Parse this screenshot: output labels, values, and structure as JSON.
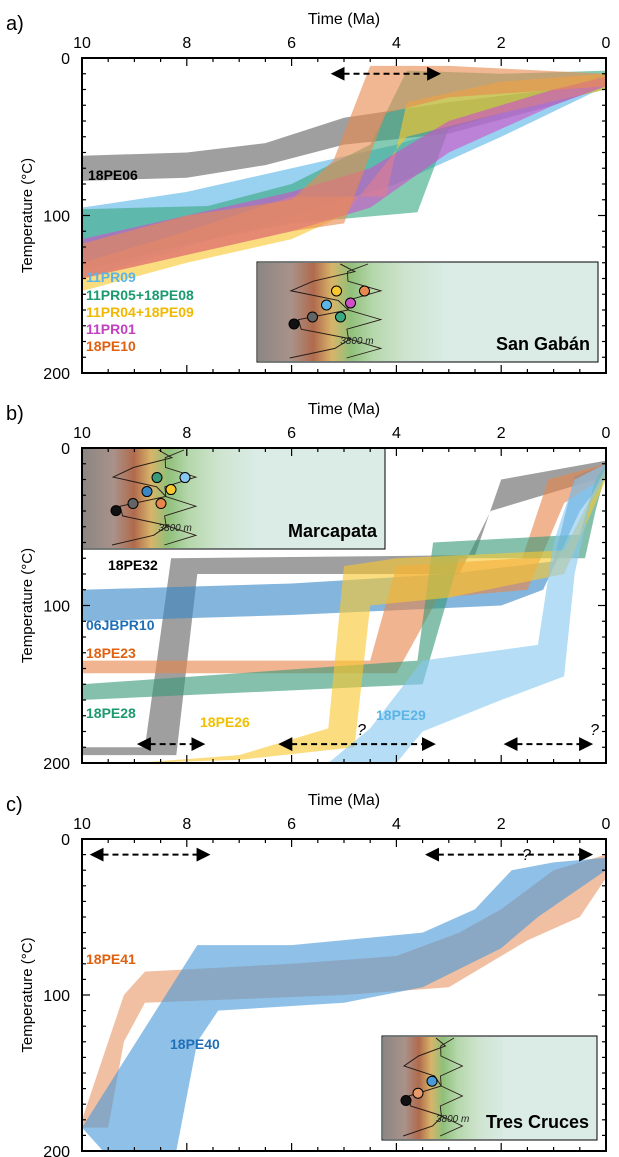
{
  "figure": {
    "panels": [
      {
        "letter": "a)",
        "xlabel": "Time (Ma)",
        "ylabel": "Temperature (°C)",
        "xticks": [
          "10",
          "8",
          "6",
          "4",
          "2",
          "0"
        ],
        "yticks": [
          "0",
          "100",
          "200"
        ],
        "inset_label": "San Gabán",
        "contour_label": "3800 m",
        "question_marks": []
      },
      {
        "letter": "b)",
        "xlabel": "Time (Ma)",
        "ylabel": "Temperature (°C)",
        "xticks": [
          "10",
          "8",
          "6",
          "4",
          "2",
          "0"
        ],
        "yticks": [
          "0",
          "100",
          "200"
        ],
        "inset_label": "Marcapata",
        "contour_label": "3800 m",
        "question_marks": [
          "?",
          "?"
        ]
      },
      {
        "letter": "c)",
        "xlabel": "Time (Ma)",
        "ylabel": "Temperature (°C)",
        "xticks": [
          "10",
          "8",
          "6",
          "4",
          "2",
          "0"
        ],
        "yticks": [
          "0",
          "100",
          "200"
        ],
        "inset_label": "Tres Cruces",
        "contour_label": "3800 m",
        "question_marks": [
          "?"
        ]
      }
    ]
  },
  "chart_data": [
    {
      "type": "area",
      "panel": "a)",
      "x_axis": {
        "label": "Time (Ma)",
        "range": [
          10,
          0
        ],
        "reversed": true
      },
      "y_axis": {
        "label": "Temperature (°C)",
        "range": [
          0,
          200
        ],
        "reversed": true
      },
      "arrows": [
        {
          "from": 5.2,
          "to": 3.2,
          "temp": 10
        }
      ],
      "series": [
        {
          "name": "18PE06",
          "color": "#646464",
          "label_color": "#000000",
          "upper": [
            [
              10,
              62
            ],
            [
              8,
              60
            ],
            [
              6.5,
              54
            ],
            [
              5,
              38
            ],
            [
              3,
              28
            ],
            [
              1,
              20
            ],
            [
              0,
              12
            ]
          ],
          "lower": [
            [
              10,
              78
            ],
            [
              8,
              76
            ],
            [
              6.5,
              68
            ],
            [
              5,
              55
            ],
            [
              3,
              48
            ],
            [
              1,
              30
            ],
            [
              0,
              18
            ]
          ]
        },
        {
          "name": "11PR09",
          "color": "#5ab4e6",
          "label_color": "#5ab4e6",
          "upper": [
            [
              10,
              95
            ],
            [
              8,
              85
            ],
            [
              6,
              70
            ],
            [
              4,
              55
            ],
            [
              2,
              35
            ],
            [
              0,
              10
            ]
          ],
          "lower": [
            [
              10,
              140
            ],
            [
              8,
              120
            ],
            [
              6,
              100
            ],
            [
              4,
              80
            ],
            [
              2,
              50
            ],
            [
              0,
              18
            ]
          ]
        },
        {
          "name": "11PR05+18PE08",
          "color": "#3aaa82",
          "label_color": "#1a9a6e",
          "upper": [
            [
              10,
              96
            ],
            [
              7.6,
              94
            ],
            [
              6,
              80
            ],
            [
              4.5,
              55
            ],
            [
              3.8,
              8
            ],
            [
              2,
              10
            ],
            [
              0,
              8
            ]
          ],
          "lower": [
            [
              10,
              135
            ],
            [
              8,
              118
            ],
            [
              6,
              105
            ],
            [
              3.6,
              98
            ],
            [
              3.0,
              45
            ],
            [
              2,
              35
            ],
            [
              0,
              20
            ]
          ]
        },
        {
          "name": "11PR04+18PE09",
          "color": "#f8c830",
          "label_color": "#f0b800",
          "upper": [
            [
              10,
              130
            ],
            [
              8,
              110
            ],
            [
              6,
              88
            ],
            [
              4.2,
              88
            ],
            [
              3.8,
              28
            ],
            [
              2,
              15
            ],
            [
              0,
              10
            ]
          ],
          "lower": [
            [
              10,
              148
            ],
            [
              8,
              130
            ],
            [
              6,
              115
            ],
            [
              5,
              100
            ],
            [
              3.8,
              50
            ],
            [
              2,
              35
            ],
            [
              0,
              20
            ]
          ]
        },
        {
          "name": "11PR01",
          "color": "#d050c8",
          "label_color": "#c040c0",
          "upper": [
            [
              10,
              115
            ],
            [
              8,
              100
            ],
            [
              6,
              85
            ],
            [
              4.5,
              70
            ],
            [
              3,
              40
            ],
            [
              1,
              20
            ],
            [
              0,
              12
            ]
          ],
          "lower": [
            [
              10,
              140
            ],
            [
              8,
              125
            ],
            [
              6,
              110
            ],
            [
              4.5,
              95
            ],
            [
              3,
              60
            ],
            [
              1,
              30
            ],
            [
              0,
              18
            ]
          ]
        },
        {
          "name": "18PE10",
          "color": "#e88a50",
          "label_color": "#e06010",
          "upper": [
            [
              10,
              118
            ],
            [
              8,
              100
            ],
            [
              6,
              90
            ],
            [
              5.2,
              65
            ],
            [
              4.5,
              5
            ],
            [
              3,
              5
            ],
            [
              0,
              10
            ]
          ],
          "lower": [
            [
              10,
              140
            ],
            [
              8,
              125
            ],
            [
              6,
              110
            ],
            [
              5,
              105
            ],
            [
              4.2,
              35
            ],
            [
              3,
              25
            ],
            [
              0,
              18
            ]
          ]
        }
      ]
    },
    {
      "type": "area",
      "panel": "b)",
      "x_axis": {
        "label": "Time (Ma)",
        "range": [
          10,
          0
        ],
        "reversed": true
      },
      "y_axis": {
        "label": "Temperature (°C)",
        "range": [
          0,
          200
        ],
        "reversed": true
      },
      "arrows": [
        {
          "from": 8.9,
          "to": 7.7,
          "temp": 188
        },
        {
          "from": 6.2,
          "to": 3.3,
          "temp": 188
        },
        {
          "from": 1.9,
          "to": 0.3,
          "temp": 188
        }
      ],
      "series": [
        {
          "name": "18PE32",
          "color": "#646464",
          "label_color": "#000000",
          "upper": [
            [
              10,
              190
            ],
            [
              8.8,
              190
            ],
            [
              8.3,
              70
            ],
            [
              2.5,
              68
            ],
            [
              2,
              20
            ],
            [
              0,
              8
            ]
          ],
          "lower": [
            [
              10,
              195
            ],
            [
              8.2,
              195
            ],
            [
              7.8,
              80
            ],
            [
              2.8,
              80
            ],
            [
              2.2,
              40
            ],
            [
              0,
              18
            ]
          ]
        },
        {
          "name": "06JBPR10",
          "color": "#3888c8",
          "label_color": "#2070b8",
          "upper": [
            [
              10,
              90
            ],
            [
              6,
              86
            ],
            [
              3,
              80
            ],
            [
              1,
              72
            ],
            [
              0.6,
              18
            ],
            [
              0,
              10
            ]
          ],
          "lower": [
            [
              10,
              110
            ],
            [
              6,
              106
            ],
            [
              2,
              100
            ],
            [
              1.2,
              90
            ],
            [
              0.5,
              40
            ],
            [
              0,
              18
            ]
          ]
        },
        {
          "name": "18PE23",
          "color": "#e8864c",
          "label_color": "#e06010",
          "upper": [
            [
              10,
              135
            ],
            [
              4.5,
              135
            ],
            [
              4.0,
              75
            ],
            [
              1.6,
              70
            ],
            [
              1.1,
              20
            ],
            [
              0,
              10
            ]
          ],
          "lower": [
            [
              10,
              143
            ],
            [
              4.0,
              143
            ],
            [
              3.2,
              95
            ],
            [
              1.5,
              90
            ],
            [
              0.8,
              35
            ],
            [
              0,
              18
            ]
          ]
        },
        {
          "name": "18PE28",
          "color": "#3a9a7a",
          "label_color": "#1a9a6e",
          "upper": [
            [
              10,
              150
            ],
            [
              3.6,
              135
            ],
            [
              3.3,
              60
            ],
            [
              0.5,
              55
            ],
            [
              0.2,
              20
            ],
            [
              0,
              10
            ]
          ],
          "lower": [
            [
              10,
              160
            ],
            [
              3.5,
              150
            ],
            [
              2.8,
              70
            ],
            [
              0.4,
              70
            ],
            [
              0.2,
              40
            ],
            [
              0,
              15
            ]
          ]
        },
        {
          "name": "18PE26",
          "color": "#f8c830",
          "label_color": "#f0c000",
          "upper": [
            [
              9,
              200
            ],
            [
              7,
              195
            ],
            [
              5.3,
              178
            ],
            [
              5.0,
              75
            ],
            [
              4,
              70
            ],
            [
              0.8,
              65
            ],
            [
              0,
              12
            ]
          ],
          "lower": [
            [
              9,
              200
            ],
            [
              7,
              198
            ],
            [
              4.8,
              190
            ],
            [
              4.5,
              100
            ],
            [
              3,
              95
            ],
            [
              0.8,
              80
            ],
            [
              0,
              20
            ]
          ]
        },
        {
          "name": "18PE29",
          "color": "#88c8f0",
          "label_color": "#5ab4e6",
          "upper": [
            [
              5.3,
              200
            ],
            [
              4.5,
              178
            ],
            [
              3.5,
              135
            ],
            [
              1.3,
              125
            ],
            [
              1,
              60
            ],
            [
              0.6,
              20
            ],
            [
              0,
              10
            ]
          ],
          "lower": [
            [
              4,
              200
            ],
            [
              3.5,
              180
            ],
            [
              2,
              160
            ],
            [
              0.8,
              145
            ],
            [
              0.6,
              80
            ],
            [
              0.3,
              35
            ],
            [
              0,
              18
            ]
          ]
        }
      ]
    },
    {
      "type": "area",
      "panel": "c)",
      "x_axis": {
        "label": "Time (Ma)",
        "range": [
          10,
          0
        ],
        "reversed": true
      },
      "y_axis": {
        "label": "Temperature (°C)",
        "range": [
          0,
          200
        ],
        "reversed": true
      },
      "arrows": [
        {
          "from": 9.8,
          "to": 7.6,
          "temp": 10
        },
        {
          "from": 3.4,
          "to": 0.3,
          "temp": 10
        }
      ],
      "series": [
        {
          "name": "18PE41",
          "color": "#e89a6a",
          "label_color": "#e06010",
          "upper": [
            [
              10,
              180
            ],
            [
              9.2,
              100
            ],
            [
              8.8,
              85
            ],
            [
              6,
              80
            ],
            [
              4,
              75
            ],
            [
              2.8,
              60
            ],
            [
              2,
              45
            ],
            [
              1,
              20
            ],
            [
              0,
              10
            ]
          ],
          "lower": [
            [
              10,
              185
            ],
            [
              9.5,
              185
            ],
            [
              9.2,
              130
            ],
            [
              8.8,
              105
            ],
            [
              5,
              100
            ],
            [
              3,
              95
            ],
            [
              1.5,
              65
            ],
            [
              0.5,
              50
            ],
            [
              0,
              25
            ]
          ]
        },
        {
          "name": "18PE40",
          "color": "#4a9ad8",
          "label_color": "#2070b8",
          "upper": [
            [
              10,
              185
            ],
            [
              8.4,
              100
            ],
            [
              7.8,
              68
            ],
            [
              6,
              68
            ],
            [
              3.5,
              60
            ],
            [
              2.5,
              45
            ],
            [
              1.8,
              20
            ],
            [
              1,
              15
            ],
            [
              0,
              12
            ]
          ],
          "lower": [
            [
              9.6,
              200
            ],
            [
              8.2,
              200
            ],
            [
              7.8,
              130
            ],
            [
              7.4,
              110
            ],
            [
              5,
              105
            ],
            [
              3.5,
              95
            ],
            [
              2,
              70
            ],
            [
              1.3,
              50
            ],
            [
              0,
              20
            ]
          ]
        }
      ]
    }
  ]
}
